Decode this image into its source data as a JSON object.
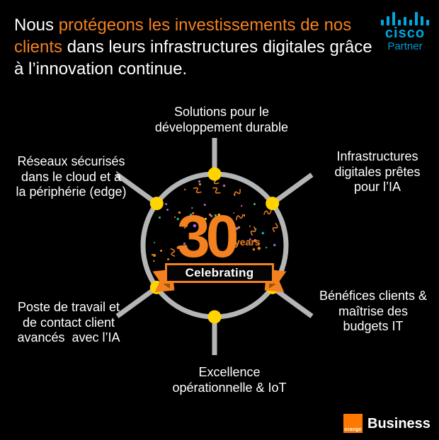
{
  "colors": {
    "background": "#000000",
    "accent_orange": "#f4811f",
    "brand_orange": "#ff7900",
    "ring_gray": "#b5b5b5",
    "dot_yellow": "#ffd400",
    "cisco_blue": "#00a8e0",
    "text_white": "#ffffff"
  },
  "headline": {
    "segments": [
      {
        "text": "Nous ",
        "highlight": false
      },
      {
        "text": "protégeons les investissements de nos clients",
        "highlight": true
      },
      {
        "text": " dans leurs infrastructures digitales grâce à l’innovation continue.",
        "highlight": false
      }
    ]
  },
  "cisco_logo": {
    "wordmark": "cisco",
    "sublabel": "Partner"
  },
  "hub": {
    "anniversary_number": "30",
    "anniversary_unit": "years",
    "banner_label": "Celebrating"
  },
  "spokes": [
    {
      "position": "top",
      "lines": [
        "Solutions pour le",
        "développement durable"
      ]
    },
    {
      "position": "upper-left",
      "lines": [
        "Réseaux sécurisés",
        "dans le cloud et à",
        "la périphérie (edge)"
      ]
    },
    {
      "position": "upper-right",
      "lines": [
        "Infrastructures",
        "digitales prêtes",
        "pour l’IA"
      ]
    },
    {
      "position": "lower-left",
      "lines": [
        "Poste de travail et",
        "de contact client",
        "avancés  avec l’IA"
      ]
    },
    {
      "position": "lower-right",
      "lines": [
        "Bénéfices clients &",
        "maîtrise des",
        "budgets IT"
      ]
    },
    {
      "position": "bottom",
      "lines": [
        "Excellence",
        "opérationnelle & IoT"
      ]
    }
  ],
  "footer_logo": {
    "square_text": "orange",
    "label": "Business"
  }
}
